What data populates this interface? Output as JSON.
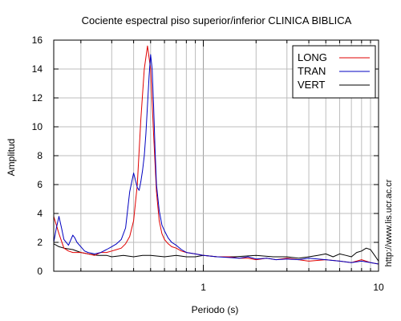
{
  "chart_data": {
    "type": "line",
    "title": "Cociente espectral piso superior/inferior  CLINICA BIBLICA",
    "xlabel": "Periodo (s)",
    "ylabel": "Amplitud",
    "x_scale": "log",
    "xlim": [
      0.14,
      10
    ],
    "ylim": [
      0,
      16
    ],
    "grid": true,
    "legend_position": "top-right",
    "x_tick_labels": [
      "1",
      "10"
    ],
    "x_tick_values": [
      1,
      10
    ],
    "y_ticks": [
      0,
      2,
      4,
      6,
      8,
      10,
      12,
      14,
      16
    ],
    "watermark": "http://www.lis.ucr.ac.cr",
    "series": [
      {
        "name": "LONG",
        "color": "#e00000",
        "x": [
          0.14,
          0.15,
          0.16,
          0.17,
          0.18,
          0.2,
          0.22,
          0.24,
          0.26,
          0.28,
          0.3,
          0.32,
          0.34,
          0.36,
          0.38,
          0.4,
          0.42,
          0.44,
          0.46,
          0.48,
          0.5,
          0.52,
          0.54,
          0.56,
          0.58,
          0.6,
          0.63,
          0.66,
          0.7,
          0.75,
          0.8,
          0.9,
          1.0,
          1.2,
          1.4,
          1.6,
          1.8,
          2.0,
          2.3,
          2.6,
          3.0,
          3.5,
          4.0,
          5.0,
          6.0,
          7.0,
          8.0,
          9.0,
          10.0
        ],
        "y": [
          3.8,
          2.6,
          1.6,
          1.4,
          1.3,
          1.3,
          1.2,
          1.1,
          1.3,
          1.3,
          1.4,
          1.5,
          1.6,
          1.9,
          2.4,
          3.5,
          6.0,
          10.5,
          14.0,
          15.6,
          14.0,
          9.5,
          5.5,
          3.5,
          2.6,
          2.2,
          1.9,
          1.7,
          1.6,
          1.4,
          1.3,
          1.2,
          1.1,
          1.0,
          1.0,
          0.9,
          0.9,
          0.8,
          0.9,
          0.8,
          0.9,
          0.8,
          0.7,
          0.8,
          0.7,
          0.6,
          0.8,
          0.6,
          0.5
        ]
      },
      {
        "name": "TRAN",
        "color": "#0000c0",
        "x": [
          0.14,
          0.145,
          0.15,
          0.155,
          0.16,
          0.17,
          0.18,
          0.185,
          0.19,
          0.2,
          0.21,
          0.22,
          0.24,
          0.26,
          0.28,
          0.3,
          0.32,
          0.34,
          0.36,
          0.38,
          0.4,
          0.42,
          0.43,
          0.44,
          0.45,
          0.46,
          0.47,
          0.48,
          0.49,
          0.5,
          0.51,
          0.52,
          0.53,
          0.54,
          0.56,
          0.58,
          0.6,
          0.63,
          0.66,
          0.7,
          0.75,
          0.8,
          0.9,
          1.0,
          1.2,
          1.4,
          1.6,
          1.8,
          2.0,
          2.3,
          2.6,
          3.0,
          3.5,
          4.0,
          5.0,
          6.0,
          7.0,
          8.0,
          9.0,
          10.0
        ],
        "y": [
          2.0,
          3.0,
          3.8,
          3.0,
          2.2,
          1.8,
          2.5,
          2.3,
          2.0,
          1.7,
          1.4,
          1.3,
          1.2,
          1.3,
          1.5,
          1.7,
          1.9,
          2.2,
          3.0,
          5.5,
          6.8,
          5.8,
          5.6,
          6.2,
          7.0,
          8.0,
          9.5,
          11.5,
          13.5,
          15.0,
          14.0,
          11.5,
          8.5,
          6.0,
          4.2,
          3.2,
          2.8,
          2.3,
          2.0,
          1.8,
          1.5,
          1.3,
          1.2,
          1.1,
          1.0,
          0.95,
          0.9,
          1.0,
          0.85,
          0.9,
          0.8,
          0.85,
          0.8,
          0.9,
          0.8,
          0.7,
          0.6,
          0.7,
          0.6,
          0.5
        ]
      },
      {
        "name": "VERT",
        "color": "#000000",
        "x": [
          0.14,
          0.15,
          0.16,
          0.18,
          0.2,
          0.22,
          0.25,
          0.28,
          0.3,
          0.35,
          0.4,
          0.45,
          0.5,
          0.6,
          0.7,
          0.8,
          0.9,
          1.0,
          1.2,
          1.5,
          2.0,
          2.5,
          3.0,
          3.5,
          4.0,
          4.5,
          5.0,
          5.5,
          6.0,
          6.5,
          7.0,
          7.5,
          8.0,
          8.5,
          9.0,
          9.5,
          10.0
        ],
        "y": [
          1.9,
          1.7,
          1.6,
          1.5,
          1.3,
          1.2,
          1.1,
          1.1,
          1.0,
          1.1,
          1.0,
          1.1,
          1.1,
          1.0,
          1.1,
          1.0,
          1.0,
          1.1,
          1.0,
          1.0,
          1.1,
          1.0,
          1.0,
          0.9,
          1.0,
          1.1,
          1.2,
          1.0,
          1.2,
          1.1,
          1.0,
          1.3,
          1.4,
          1.6,
          1.5,
          1.1,
          0.7
        ]
      }
    ]
  }
}
